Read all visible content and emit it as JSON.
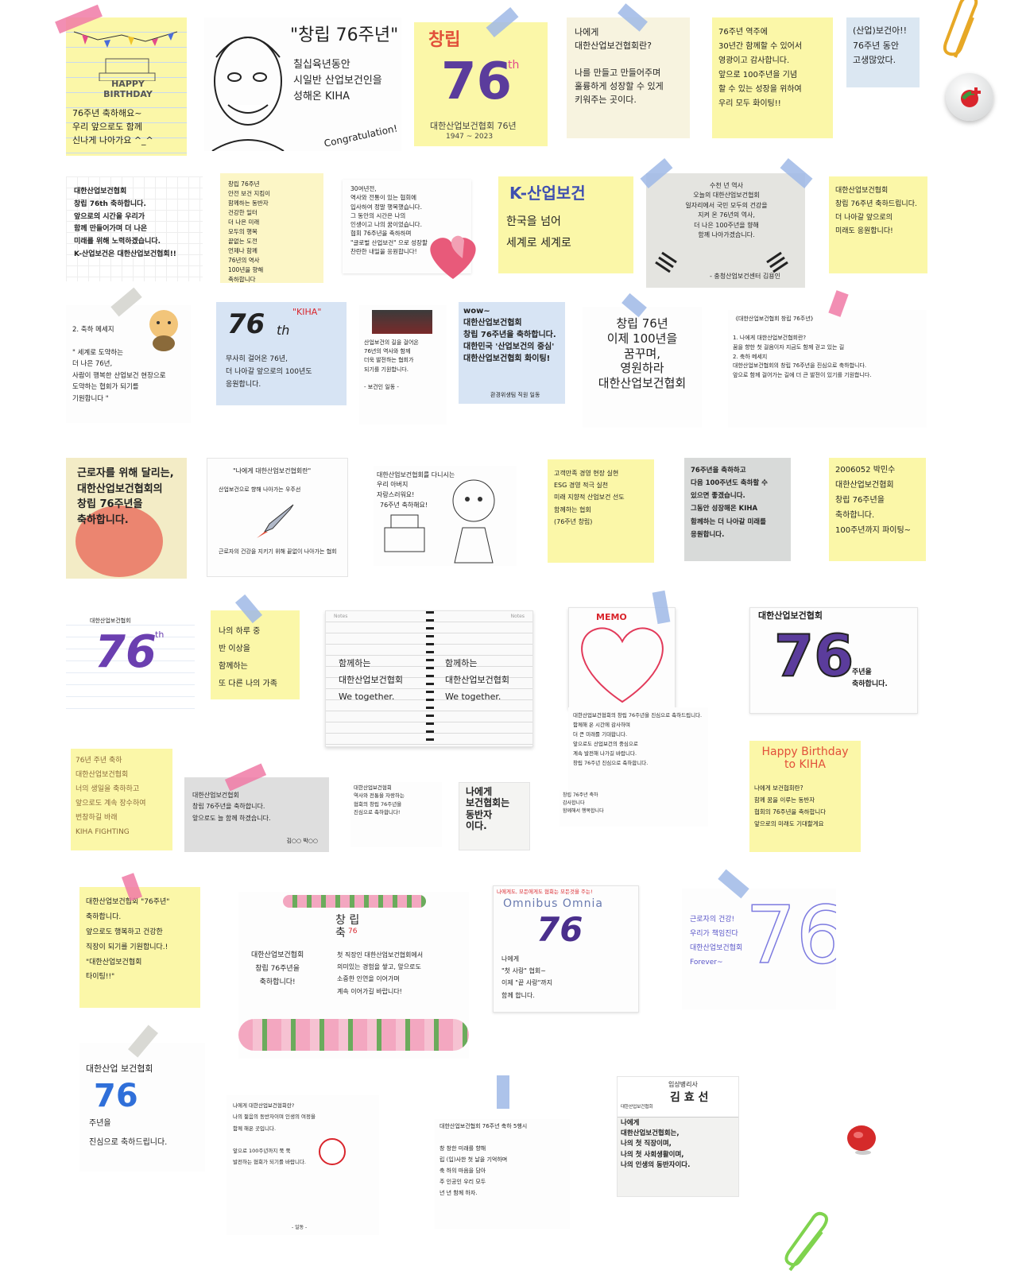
{
  "notes": {
    "n1": {
      "birthday": "HAPPY\nBIRTHDAY",
      "text": "76주년 축하해요~\n우리 앞으로도 함께\n신나게 나아가요 ^_^"
    },
    "n2": {
      "title": "\"창립 76주년\"",
      "text": "칠십육년동안\n시일반 산업보건인을\n성해온 KIHA",
      "congrats": "Congratulation!"
    },
    "n3": {
      "title": "창립",
      "num": "76",
      "suffix": "th",
      "org": "대한산업보건협회 76년",
      "years": "1947 ~ 2023"
    },
    "n4": {
      "text": "나에게\n대한산업보건협회란?\n\n나를 만들고 만들어주며\n훌륭하게 성장할 수 있게\n키워주는 곳이다."
    },
    "n5": {
      "text": "76주년 역주에\n30년간 함께할 수 있어서\n영광이고 감사합니다.\n앞으로 100주년을 기념\n할 수 있는 성장을 위하여\n우리 모두 화이팅!!"
    },
    "n6": {
      "text": "(산업)보건아!!\n76주년 동안\n고생많았다."
    },
    "n7": {
      "text": "대한산업보건협회\n창립 76th 축하합니다.\n앞으로의 시간을 우리가\n함께 만들어가며 더 나은\n미래를 위해 노력하겠습니다.\nK-산업보건은 대한산업보건협회!!"
    },
    "n8": {
      "text": "창립 76주년\n안전 보건 지킴이\n함께하는 동반자\n건강한 일터\n더 나은 미래\n모두의 행복\n끝없는 도전\n언제나 함께\n76년의 역사\n100년을 향해\n축하합니다"
    },
    "n9": {
      "text": "30여년전,\n역사와 전통이 있는 협회에\n입사하여 정말 행복했습니다.\n그 동안의 시간은 나의\n인생이고 나의 꿈이었습니다.\n협회 76주년을 축하하며\n\"글로벌 산업보건\" 으로 성장할\n찬란한 내일을 응원합니다!"
    },
    "n10": {
      "title": "K-산업보건",
      "text": "한국을 넘어\n세계로 세계로"
    },
    "n11": {
      "text": "수천 년 역사\n오늘의 대한산업보건협회\n일자리에서 국민 모두의 건강을\n지켜 온 76년의 역사,\n더 나은 100주년을 향해\n함께 나아가겠습니다.",
      "sig": "- 충청산업보건센터 김용인"
    },
    "n12": {
      "text": "대한산업보건협회\n창립 76주년 축하드립니다.\n더 나아갈 앞으로의\n미래도 응원합니다!"
    },
    "n13": {
      "text": "2. 축하 메세지\n\n\" 세계로 도약하는\n  더 나은 76년,\n사람이 행복한 산업보건 현장으로\n도약하는 협회가 되기를\n기원합니다 \""
    },
    "n14": {
      "title": "76",
      "suffix": "th",
      "badge": "\"KIHA\"",
      "text": "무사히 걸어온 76년,\n더 나아갈 앞으로의 100년도\n응원합니다."
    },
    "n15": {
      "text": "산업보건의 길을 걸어온\n76년의 역사와 함께\n더욱 발전하는 협회가\n되기를 기원합니다.\n\n- 보건인 일동 -"
    },
    "n16": {
      "text": "wow~\n대한산업보건협회\n창립 76주년을 축하합니다.\n대한민국 '산업보건의 중심'\n대한산업보건협회 화이팅!",
      "sig": "환경위생팀 직원 일동"
    },
    "n17": {
      "text": "창립 76년\n이제 100년을\n꿈꾸며,\n영원하라\n대한산업보건협회"
    },
    "n18": {
      "text": "《대한산업보건협회 창립 76주년》\n\n1. 나에게 대한산업보건협회란?\n  꿈을 향한 첫 걸음이자 지금도 함께 걷고 있는 길\n2. 축하 메세지\n  대한산업보건협회의 창립 76주년을 진심으로 축하합니다.\n  앞으로 함께 걸어가는 길에 더 큰 발전이 있기를 기원합니다."
    },
    "n19": {
      "text": "근로자를 위해 달리는,\n대한산업보건협회의\n창립 76주년을\n축하합니다."
    },
    "n20": {
      "title": "\"나에게 대한산업보건협회란\"",
      "text": "산업보건으로 향해 나아가는 우주선",
      "sub": "근로자의 건강을 지키기 위해 끝없이 나아가는 협회"
    },
    "n21": {
      "text": "대한산업보건협회를 다니시는 우리 아버지\n자랑스러워요!",
      "cake": "76주년 축하해요!"
    },
    "n22": {
      "text": "고객만족 경영 현장 실현\nESG 경영 적극 실천\n미래 지향적 산업보건 선도\n함께하는 협회\n(76주년 창립)"
    },
    "n23": {
      "text": "76주년을 축하하고\n다음 100주년도 축하할 수\n있으면 좋겠습니다.\n그동안 성장해온 KIHA\n함께하는 더 나아갈 미래를\n응원합니다."
    },
    "n24": {
      "text": "2006052 박민수\n대한산업보건협회\n창립 76주년을\n축하합니다.\n100주년까지 파이팅~"
    },
    "n25": {
      "title": "대한산업보건협회",
      "num": "76",
      "suffix": "th"
    },
    "n26": {
      "text": "나의 하루 중\n반 이상을\n함께하는\n또 다른 나의 가족"
    },
    "n27": {
      "left_label": "Notes",
      "right_label": "Notes",
      "text": "함께하는\n대한산업보건협회\nWe together."
    },
    "n28": {
      "title": "MEMO",
      "text": "대한산업보건협회의 창립 76주년을 진심으로 축하드립니다.\n함께해 온 시간에 감사하며\n더 큰 미래를 기대합니다.\n앞으로도 산업보건의 중심으로\n계속 발전해 나가길 바랍니다.\n창립 76주년 진심으로 축하합니다."
    },
    "n29": {
      "title": "대한산업보건협회",
      "num": "76",
      "text": "주년을\n축하합니다."
    },
    "n30": {
      "text": "76년 주년 축하\n대한산업보건협회\n너의 생일을 축하하고\n앞으로도 계속 장수하여\n번창하길 바래\nKIHA FIGHTING"
    },
    "n31": {
      "text": "대한산업보건협회\n창립 76주년을 축하합니다.\n앞으로도 늘 함께 하겠습니다.",
      "sig": "김○○ 박○○"
    },
    "n32": {
      "text": "대한산업보건협회\n역사와 전통을 자랑하는\n협회의 창립 76주년을\n진심으로 축하합니다!"
    },
    "n33": {
      "text": "나에게\n보건협회는\n동반자\n이다."
    },
    "n34": {
      "text": "창립 76주년 축하\n감사합니다\n함께해서 행복합니다"
    },
    "n35": {
      "title": "Happy Birthday\nto KIHA",
      "text": "나에게 보건협회란?\n함께 꿈을 이루는 동반자\n협회의 76주년을 축하합니다\n앞으로의 미래도 기대할게요"
    },
    "n36": {
      "text": "대한산업보건협회 \"76주년\"\n축하합니다.\n앞으로도 행복하고 건강한\n직장이 되기를 기원합니다.!\n\"대한산업보건협회\n타이팅!!\""
    },
    "n37": {
      "title": "창 립\n축",
      "num": "76",
      "text": "대한산업보건협회\n창립 76주년을\n축하합니다!",
      "text2": "첫 직장인 대한산업보건협회에서\n의미있는 경험을 쌓고, 앞으로도\n소중한 인연을 이어가며\n계속 이어가길 바랍니다!"
    },
    "n38": {
      "title": "나에게도, 모든에게도 협회는 모든것을 주는!",
      "brand": "Omnibus Omnia",
      "num": "76",
      "text": "나에게\n\"첫 사랑\" 협회~\n이제 \"끝 사랑\"까지\n함께 합니다."
    },
    "n39": {
      "text": "근로자의 건강!\n우리가 책임진다\n대한산업보건협회\nForever~",
      "num": "76"
    },
    "n40": {
      "title": "대한산업 보건협회",
      "num": "76",
      "text": "주년을\n진심으로 축하드립니다."
    },
    "n41": {
      "text": "나에게 대한산업보건협회란?\n나의 젊음의 동반자이며 인생의 여정을\n함께 해온 곳입니다.\n\n앞으로 100주년까지 쭉 쭉\n발전하는 협회가 되기를 바랍니다.",
      "sig": "- 일동 -"
    },
    "n42": {
      "text": "대한산업보건협회 76주년 축하 5행시\n\n창 창한 미래를 향해\n립 (입)사한 첫 날을 기억하며\n축 하의 마음을 담아\n주 인공인 우리 모두\n년 년 함께 하자."
    },
    "n43": {
      "card_role": "임상병리사",
      "card_name": "김 효 선",
      "card_org": "대한산업보건협회",
      "text": "나에게\n대한산업보건협회는,\n나의 첫 직장이며,\n나의 첫 사회생활이며,\n나의 인생의 동반자이다."
    }
  },
  "colors": {
    "pink": "#f07aa6",
    "blue_tape": "#9fb8e6",
    "yellow": "#fbf7a8",
    "accent_red": "#d9252c",
    "accent_green": "#3a9a3e",
    "purple": "#5b3c9c"
  }
}
